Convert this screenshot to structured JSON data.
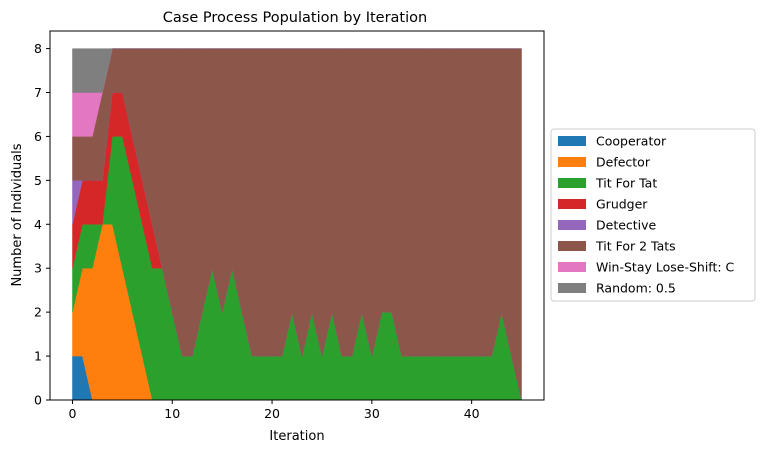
{
  "chart_data": {
    "type": "area",
    "title": "Case Process Population by Iteration",
    "xlabel": "Iteration",
    "ylabel": "Number of Individuals",
    "xlim": [
      -2.25,
      47.25
    ],
    "ylim": [
      0,
      8.4
    ],
    "xticks": [
      0,
      10,
      20,
      30,
      40
    ],
    "yticks": [
      0,
      1,
      2,
      3,
      4,
      5,
      6,
      7,
      8
    ],
    "legend_position": "right",
    "grid": false,
    "x": [
      0,
      1,
      2,
      3,
      4,
      5,
      6,
      7,
      8,
      9,
      10,
      11,
      12,
      13,
      14,
      15,
      16,
      17,
      18,
      19,
      20,
      21,
      22,
      23,
      24,
      25,
      26,
      27,
      28,
      29,
      30,
      31,
      32,
      33,
      34,
      35,
      36,
      37,
      38,
      39,
      40,
      41,
      42,
      43,
      44,
      45
    ],
    "series": [
      {
        "name": "Cooperator",
        "color": "#1f77b4",
        "values": [
          1,
          1,
          0,
          0,
          0,
          0,
          0,
          0,
          0,
          0,
          0,
          0,
          0,
          0,
          0,
          0,
          0,
          0,
          0,
          0,
          0,
          0,
          0,
          0,
          0,
          0,
          0,
          0,
          0,
          0,
          0,
          0,
          0,
          0,
          0,
          0,
          0,
          0,
          0,
          0,
          0,
          0,
          0,
          0,
          0,
          0
        ]
      },
      {
        "name": "Defector",
        "color": "#ff7f0e",
        "values": [
          1,
          2,
          3,
          4,
          4,
          3,
          2,
          1,
          0,
          0,
          0,
          0,
          0,
          0,
          0,
          0,
          0,
          0,
          0,
          0,
          0,
          0,
          0,
          0,
          0,
          0,
          0,
          0,
          0,
          0,
          0,
          0,
          0,
          0,
          0,
          0,
          0,
          0,
          0,
          0,
          0,
          0,
          0,
          0,
          0,
          0
        ]
      },
      {
        "name": "Tit For Tat",
        "color": "#2ca02c",
        "values": [
          1,
          1,
          1,
          0,
          2,
          3,
          3,
          3,
          3,
          3,
          2,
          1,
          1,
          2,
          3,
          2,
          3,
          2,
          1,
          1,
          1,
          1,
          2,
          1,
          2,
          1,
          2,
          1,
          1,
          2,
          1,
          2,
          2,
          1,
          1,
          1,
          1,
          1,
          1,
          1,
          1,
          1,
          1,
          2,
          1,
          0
        ]
      },
      {
        "name": "Grudger",
        "color": "#d62728",
        "values": [
          1,
          1,
          1,
          1,
          1,
          1,
          1,
          1,
          1,
          0,
          0,
          0,
          0,
          0,
          0,
          0,
          0,
          0,
          0,
          0,
          0,
          0,
          0,
          0,
          0,
          0,
          0,
          0,
          0,
          0,
          0,
          0,
          0,
          0,
          0,
          0,
          0,
          0,
          0,
          0,
          0,
          0,
          0,
          0,
          0,
          0
        ]
      },
      {
        "name": "Detective",
        "color": "#9467bd",
        "values": [
          1,
          0,
          0,
          0,
          0,
          0,
          0,
          0,
          0,
          0,
          0,
          0,
          0,
          0,
          0,
          0,
          0,
          0,
          0,
          0,
          0,
          0,
          0,
          0,
          0,
          0,
          0,
          0,
          0,
          0,
          0,
          0,
          0,
          0,
          0,
          0,
          0,
          0,
          0,
          0,
          0,
          0,
          0,
          0,
          0,
          0
        ]
      },
      {
        "name": "Tit For 2 Tats",
        "color": "#8c564b",
        "values": [
          1,
          1,
          1,
          2,
          1,
          1,
          2,
          3,
          4,
          5,
          6,
          7,
          7,
          6,
          5,
          6,
          5,
          6,
          7,
          7,
          7,
          7,
          6,
          7,
          6,
          7,
          6,
          7,
          7,
          6,
          7,
          6,
          6,
          7,
          7,
          7,
          7,
          7,
          7,
          7,
          7,
          7,
          7,
          6,
          7,
          8
        ]
      },
      {
        "name": "Win-Stay Lose-Shift: C",
        "color": "#e377c2",
        "values": [
          1,
          1,
          1,
          0,
          0,
          0,
          0,
          0,
          0,
          0,
          0,
          0,
          0,
          0,
          0,
          0,
          0,
          0,
          0,
          0,
          0,
          0,
          0,
          0,
          0,
          0,
          0,
          0,
          0,
          0,
          0,
          0,
          0,
          0,
          0,
          0,
          0,
          0,
          0,
          0,
          0,
          0,
          0,
          0,
          0,
          0
        ]
      },
      {
        "name": "Random: 0.5",
        "color": "#7f7f7f",
        "values": [
          1,
          1,
          1,
          1,
          0,
          0,
          0,
          0,
          0,
          0,
          0,
          0,
          0,
          0,
          0,
          0,
          0,
          0,
          0,
          0,
          0,
          0,
          0,
          0,
          0,
          0,
          0,
          0,
          0,
          0,
          0,
          0,
          0,
          0,
          0,
          0,
          0,
          0,
          0,
          0,
          0,
          0,
          0,
          0,
          0,
          0
        ]
      }
    ]
  }
}
